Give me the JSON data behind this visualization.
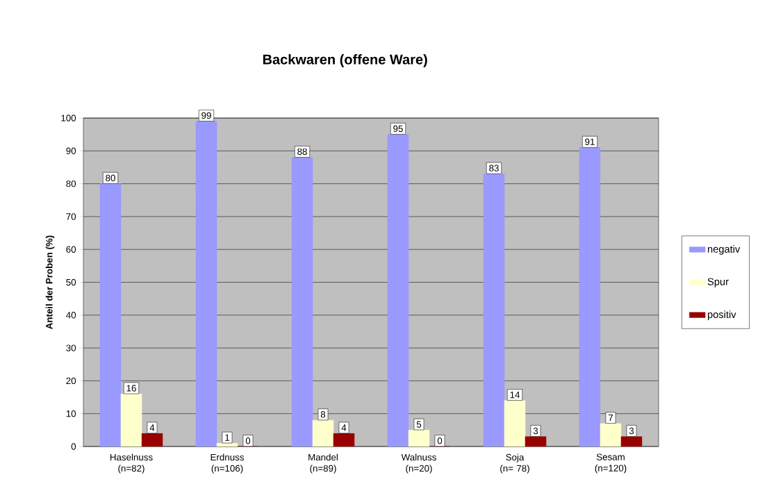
{
  "chart_data": {
    "type": "bar",
    "title": "Backwaren (offene Ware)",
    "ylabel": "Anteil  der Proben (%)",
    "categories": [
      "Haselnuss (n=82)",
      "Erdnuss (n=106)",
      "Mandel (n=89)",
      "Walnuss (n=20)",
      "Soja (n= 78)",
      "Sesam (n=120)"
    ],
    "series": [
      {
        "name": "negativ",
        "color": "#9999ff",
        "values": [
          80,
          99,
          88,
          95,
          83,
          91
        ]
      },
      {
        "name": "Spur",
        "color": "#ffffcc",
        "values": [
          16,
          1,
          8,
          5,
          14,
          7
        ]
      },
      {
        "name": "positiv",
        "color": "#990000",
        "values": [
          4,
          0,
          4,
          0,
          3,
          3
        ]
      }
    ],
    "ylim": [
      0,
      100
    ],
    "yticks": [
      0,
      10,
      20,
      30,
      40,
      50,
      60,
      70,
      80,
      90,
      100
    ],
    "grid": "y",
    "legend": "right",
    "data_labels": true
  }
}
